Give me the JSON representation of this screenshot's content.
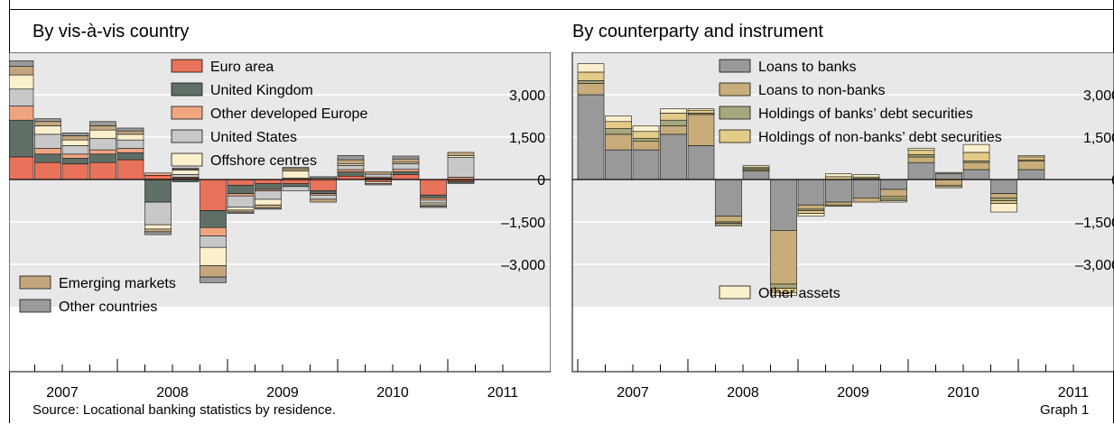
{
  "graph_label": "Graph 1",
  "source": "Source: Locational banking statistics by residence.",
  "chart_data": [
    {
      "type": "bar",
      "stacked": true,
      "title": "By vis-à-vis country",
      "x": [
        "2007Q1",
        "2007Q2",
        "2007Q3",
        "2007Q4",
        "2008Q1",
        "2008Q2",
        "2008Q3",
        "2008Q4",
        "2009Q1",
        "2009Q2",
        "2009Q3",
        "2009Q4",
        "2010Q1",
        "2010Q2",
        "2010Q3",
        "2010Q4",
        "2011Q1"
      ],
      "xticks": [
        "2007",
        "2008",
        "2009",
        "2010",
        "2011"
      ],
      "yticks": [
        3000,
        1500,
        0,
        -1500,
        -3000
      ],
      "ytick_labels": [
        "3,000",
        "1,500",
        "0",
        "–1,500",
        "–3,000"
      ],
      "ylim": [
        -4500,
        4500
      ],
      "legend_top": [
        "Euro area",
        "United Kingdom",
        "Other developed Europe",
        "United States",
        "Offshore centres"
      ],
      "legend_bottom": [
        "Emerging markets",
        "Other countries"
      ],
      "series": [
        {
          "name": "Euro area",
          "color": "#E8735A",
          "values": [
            800,
            600,
            550,
            600,
            700,
            150,
            50,
            -1100,
            -200,
            -150,
            -150,
            -400,
            120,
            -80,
            180,
            -550,
            -60
          ]
        },
        {
          "name": "United Kingdom",
          "color": "#5F6F66",
          "values": [
            1300,
            300,
            200,
            300,
            250,
            -800,
            -80,
            -600,
            -300,
            -200,
            -100,
            -100,
            150,
            50,
            100,
            -100,
            -40
          ]
        },
        {
          "name": "Other developed Europe",
          "color": "#F0A581",
          "values": [
            500,
            200,
            150,
            150,
            150,
            80,
            30,
            -300,
            -80,
            -50,
            50,
            -50,
            80,
            40,
            80,
            -80,
            80
          ]
        },
        {
          "name": "United States",
          "color": "#C8C8C8",
          "values": [
            600,
            500,
            300,
            400,
            300,
            -800,
            100,
            -400,
            -400,
            -300,
            -150,
            -150,
            150,
            100,
            200,
            -100,
            700
          ]
        },
        {
          "name": "Offshore centres",
          "color": "#FAF0CC",
          "values": [
            500,
            300,
            200,
            300,
            200,
            -150,
            150,
            -650,
            -100,
            -200,
            250,
            50,
            50,
            -60,
            50,
            -60,
            60
          ]
        },
        {
          "name": "Emerging markets",
          "color": "#C4A67E",
          "values": [
            300,
            150,
            150,
            150,
            120,
            -100,
            30,
            -400,
            -70,
            -100,
            80,
            -100,
            150,
            80,
            120,
            -50,
            120
          ]
        },
        {
          "name": "Other countries",
          "color": "#9A9A9A",
          "values": [
            200,
            100,
            100,
            150,
            100,
            -100,
            50,
            -200,
            -50,
            -50,
            50,
            50,
            150,
            -50,
            100,
            -50,
            -40
          ]
        }
      ]
    },
    {
      "type": "bar",
      "stacked": true,
      "title": "By counterparty and instrument",
      "x": [
        "2007Q1",
        "2007Q2",
        "2007Q3",
        "2007Q4",
        "2008Q1",
        "2008Q2",
        "2008Q3",
        "2008Q4",
        "2009Q1",
        "2009Q2",
        "2009Q3",
        "2009Q4",
        "2010Q1",
        "2010Q2",
        "2010Q3",
        "2010Q4",
        "2011Q1"
      ],
      "xticks": [
        "2007",
        "2008",
        "2009",
        "2010",
        "2011"
      ],
      "yticks": [
        3000,
        1500,
        0,
        -1500,
        -3000
      ],
      "ytick_labels": [
        "3,000",
        "1,500",
        "0",
        "–1,500",
        "–3,000"
      ],
      "ylim": [
        -4500,
        4500
      ],
      "legend_top": [
        "Loans to banks",
        "Loans to  non-banks",
        "Holdings of banks’ debt securities",
        "Holdings of non-banks’ debt securities"
      ],
      "legend_bottom": [
        "Other assets"
      ],
      "series": [
        {
          "name": "Loans to banks",
          "color": "#999999",
          "values": [
            3000,
            1050,
            1050,
            1600,
            1200,
            -1300,
            300,
            -1800,
            -900,
            -800,
            -650,
            -350,
            600,
            200,
            350,
            -500,
            350
          ]
        },
        {
          "name": "Loans to  non-banks",
          "color": "#C8AD7A",
          "values": [
            400,
            550,
            300,
            300,
            1100,
            -200,
            50,
            -1900,
            -150,
            -100,
            -150,
            -250,
            200,
            -200,
            250,
            -150,
            300
          ]
        },
        {
          "name": "Holdings of banks’ debt securities",
          "color": "#A6A77C",
          "values": [
            100,
            200,
            100,
            200,
            50,
            -50,
            40,
            -150,
            -50,
            -50,
            40,
            -100,
            80,
            50,
            60,
            -100,
            50
          ]
        },
        {
          "name": "Holdings of non-banks’ debt securities",
          "color": "#E3CB88",
          "values": [
            300,
            250,
            250,
            250,
            100,
            -50,
            50,
            -150,
            -100,
            100,
            50,
            -50,
            150,
            -50,
            300,
            -100,
            100
          ]
        },
        {
          "name": "Other assets",
          "color": "#FAF0CC",
          "values": [
            300,
            200,
            200,
            150,
            50,
            -50,
            50,
            -100,
            -100,
            100,
            80,
            -50,
            80,
            -40,
            280,
            -300,
            50
          ]
        }
      ]
    }
  ]
}
